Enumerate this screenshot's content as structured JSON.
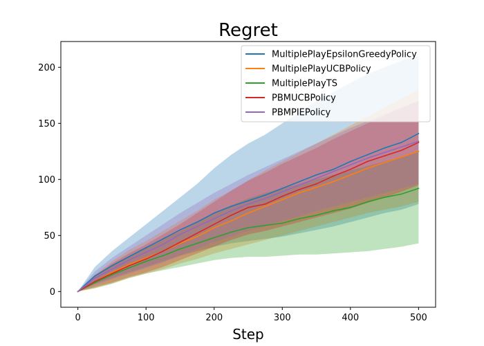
{
  "chart_data": {
    "type": "line",
    "title": "Regret",
    "xlabel": "Step",
    "ylabel": "",
    "xlim": [
      -25,
      525
    ],
    "ylim": [
      -14,
      223
    ],
    "xticks": [
      0,
      100,
      200,
      300,
      400,
      500
    ],
    "yticks": [
      0,
      50,
      100,
      150,
      200
    ],
    "grid": false,
    "legend_position": "top-right",
    "x": [
      0,
      25,
      50,
      75,
      100,
      125,
      150,
      175,
      200,
      225,
      250,
      275,
      300,
      325,
      350,
      375,
      400,
      425,
      450,
      475,
      500
    ],
    "series": [
      {
        "name": "MultiplePlayEpsilonGreedyPolicy",
        "color": "#1f77b4",
        "values": [
          0,
          14,
          23,
          31,
          39,
          47,
          55,
          62,
          70,
          76,
          81,
          86,
          92,
          98,
          104,
          109,
          116,
          122,
          128,
          133,
          141
        ],
        "lower": [
          0,
          7,
          12,
          17,
          22,
          27,
          32,
          36,
          40,
          43,
          45,
          47,
          49,
          52,
          55,
          58,
          62,
          66,
          70,
          73,
          78
        ],
        "upper": [
          0,
          22,
          36,
          48,
          60,
          72,
          84,
          96,
          110,
          122,
          132,
          140,
          150,
          160,
          170,
          178,
          186,
          194,
          200,
          206,
          210
        ]
      },
      {
        "name": "MultiplePlayUCBPolicy",
        "color": "#ff7f0e",
        "values": [
          0,
          9,
          17,
          24,
          30,
          36,
          43,
          49,
          57,
          63,
          70,
          76,
          82,
          88,
          93,
          98,
          104,
          110,
          115,
          120,
          125
        ],
        "lower": [
          0,
          3,
          7,
          12,
          16,
          20,
          25,
          29,
          34,
          38,
          42,
          46,
          50,
          54,
          58,
          62,
          66,
          70,
          73,
          76,
          80
        ],
        "upper": [
          0,
          15,
          27,
          37,
          45,
          54,
          63,
          72,
          82,
          90,
          99,
          108,
          116,
          124,
          132,
          140,
          148,
          156,
          164,
          172,
          180
        ]
      },
      {
        "name": "MultiplePlayTS",
        "color": "#2ca02c",
        "values": [
          0,
          8,
          15,
          21,
          27,
          32,
          38,
          43,
          48,
          53,
          57,
          59,
          61,
          65,
          68,
          72,
          75,
          80,
          84,
          87,
          92
        ],
        "lower": [
          0,
          3,
          7,
          12,
          16,
          19,
          22,
          25,
          28,
          30,
          31,
          31,
          32,
          33,
          33,
          34,
          35,
          36,
          38,
          40,
          43
        ],
        "upper": [
          0,
          14,
          24,
          32,
          40,
          47,
          54,
          62,
          70,
          77,
          83,
          88,
          92,
          96,
          100,
          104,
          108,
          112,
          116,
          120,
          125
        ]
      },
      {
        "name": "PBMUCBPolicy",
        "color": "#d62728",
        "values": [
          0,
          9,
          16,
          23,
          29,
          36,
          44,
          52,
          60,
          68,
          75,
          78,
          85,
          91,
          96,
          103,
          109,
          116,
          121,
          126,
          133
        ],
        "lower": [
          0,
          4,
          8,
          13,
          17,
          22,
          28,
          34,
          40,
          46,
          51,
          54,
          58,
          62,
          66,
          70,
          74,
          79,
          84,
          89,
          95
        ],
        "upper": [
          0,
          14,
          25,
          34,
          42,
          51,
          60,
          70,
          80,
          90,
          99,
          106,
          114,
          121,
          128,
          136,
          143,
          150,
          157,
          164,
          170
        ]
      },
      {
        "name": "PBMPIEPolicy",
        "color": "#9467bd",
        "values": [
          0,
          12,
          20,
          28,
          35,
          42,
          51,
          58,
          65,
          72,
          78,
          83,
          89,
          95,
          101,
          107,
          113,
          119,
          124,
          129,
          134
        ],
        "lower": [
          0,
          6,
          11,
          16,
          21,
          26,
          32,
          38,
          44,
          49,
          54,
          58,
          63,
          67,
          72,
          76,
          80,
          84,
          88,
          92,
          96
        ],
        "upper": [
          0,
          18,
          30,
          40,
          50,
          60,
          70,
          79,
          88,
          96,
          104,
          111,
          118,
          125,
          132,
          139,
          146,
          152,
          158,
          164,
          170
        ]
      }
    ]
  }
}
